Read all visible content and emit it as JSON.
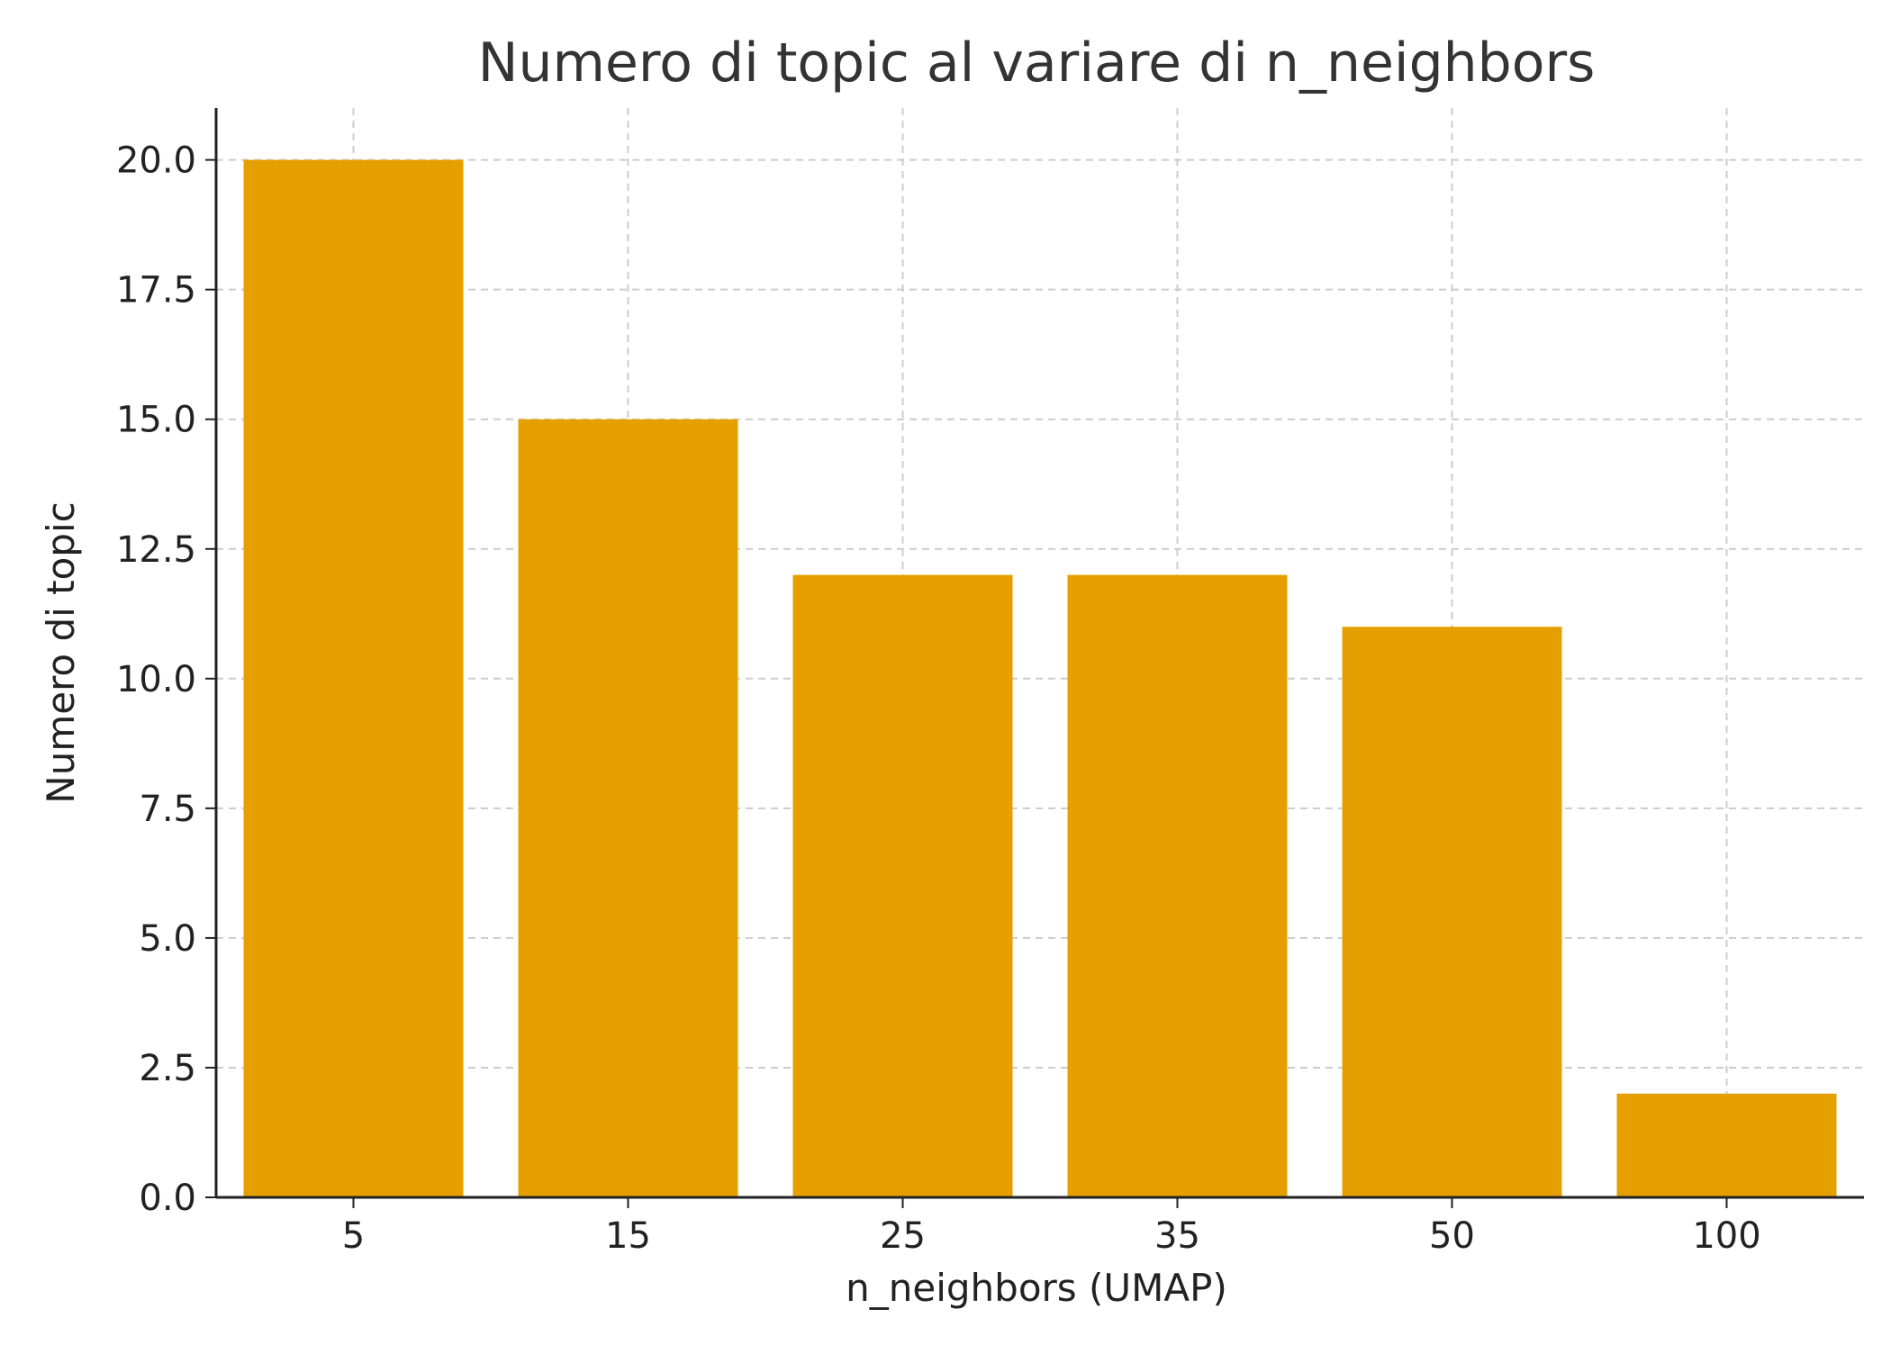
{
  "chart_data": {
    "type": "bar",
    "title": "Numero di topic al variare di n_neighbors",
    "xlabel": "n_neighbors (UMAP)",
    "ylabel": "Numero di topic",
    "categories": [
      "5",
      "15",
      "25",
      "35",
      "50",
      "100"
    ],
    "values": [
      20,
      15,
      12,
      12,
      11,
      2
    ],
    "ylim": [
      0,
      21
    ],
    "yticks": [
      0.0,
      2.5,
      5.0,
      7.5,
      10.0,
      12.5,
      15.0,
      17.5,
      20.0
    ],
    "ytick_labels": [
      "0.0",
      "2.5",
      "5.0",
      "7.5",
      "10.0",
      "12.5",
      "15.0",
      "17.5",
      "20.0"
    ],
    "grid": true,
    "legend": "none",
    "bar_color": "#e5a000",
    "grid_color": "#cccccc",
    "axis_color": "#222222",
    "text_color": "#222222",
    "title_color": "#333333"
  }
}
